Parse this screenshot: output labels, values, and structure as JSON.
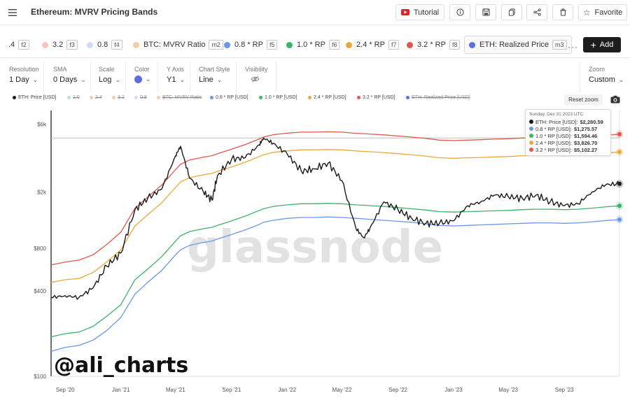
{
  "header": {
    "title": "Ethereum: MVRV Pricing Bands",
    "tutorial_label": "Tutorial",
    "favorite_label": "Favorite"
  },
  "metrics": [
    {
      "label": ".4",
      "key": "f2",
      "color": ""
    },
    {
      "label": "3.2",
      "key": "f3",
      "color": "#f4c8bd"
    },
    {
      "label": "0.8",
      "key": "f4",
      "color": "#cfdcf5"
    },
    {
      "label": "BTC: MVRV Ratio",
      "key": "m2",
      "color": "#f3cfa5"
    },
    {
      "label": "0.8 * RP",
      "key": "f5",
      "color": "#6a97e6"
    },
    {
      "label": "1.0 * RP",
      "key": "f6",
      "color": "#3db36a"
    },
    {
      "label": "2.4 * RP",
      "key": "f7",
      "color": "#e9a93a"
    },
    {
      "label": "3.2 * RP",
      "key": "f8",
      "color": "#e2574c"
    },
    {
      "label": "ETH: Realized Price",
      "key": "m3",
      "color": "#5b6fe0"
    }
  ],
  "more_label": "···",
  "add_label": "Add",
  "controls": [
    {
      "label": "Resolution",
      "value": "1 Day"
    },
    {
      "label": "SMA",
      "value": "0 Days"
    },
    {
      "label": "Scale",
      "value": "Log"
    },
    {
      "label": "Color",
      "value": ""
    },
    {
      "label": "Y Axis",
      "value": "Y1"
    },
    {
      "label": "Chart Style",
      "value": "Line"
    },
    {
      "label": "Visibility",
      "value": ""
    },
    {
      "label": "Zoom",
      "value": "Custom"
    }
  ],
  "color_control_value": "#5b6fe0",
  "legend": [
    {
      "label": "ETH: Price [USD]",
      "color": "#1a1a1a",
      "off": false
    },
    {
      "label": "1.0",
      "color": "#bfe3c9",
      "off": true
    },
    {
      "label": "2.4",
      "color": "#f3cfa5",
      "off": true
    },
    {
      "label": "3.2",
      "color": "#f4c8bd",
      "off": true
    },
    {
      "label": "0.8",
      "color": "#cfdcf5",
      "off": true
    },
    {
      "label": "BTC: MVRV Ratio",
      "color": "#f3cfa5",
      "off": true
    },
    {
      "label": "0.8 * RP [USD]",
      "color": "#6a97e6",
      "off": false
    },
    {
      "label": "1.0 * RP [USD]",
      "color": "#3db36a",
      "off": false
    },
    {
      "label": "2.4 * RP [USD]",
      "color": "#e9a93a",
      "off": false
    },
    {
      "label": "3.2 * RP [USD]",
      "color": "#e2574c",
      "off": false
    },
    {
      "label": "ETH: Realized Price [USD]",
      "color": "#5b6fe0",
      "off": true
    }
  ],
  "reset_zoom_label": "Reset zoom",
  "watermark": "glassnode",
  "handle": "@ali_charts",
  "tooltip": {
    "date": "Sunday, Dec 31 2023 UTC",
    "rows": [
      {
        "label": "ETH: Price [USD]:",
        "value": "$2,280.59",
        "color": "#1a1a1a"
      },
      {
        "label": "0.8 * RP [USD]:",
        "value": "$1,275.57",
        "color": "#6a97e6"
      },
      {
        "label": "1.0 * RP [USD]:",
        "value": "$1,594.46",
        "color": "#3db36a"
      },
      {
        "label": "2.4 * RP [USD]:",
        "value": "$3,826.70",
        "color": "#e9a93a"
      },
      {
        "label": "3.2 * RP [USD]:",
        "value": "$5,102.27",
        "color": "#e2574c"
      }
    ]
  },
  "chart_data": {
    "type": "line",
    "title": "Ethereum: MVRV Pricing Bands",
    "x_ticks": [
      "Sep '20",
      "Jan '21",
      "May '21",
      "Sep '21",
      "Jan '22",
      "May '22",
      "Sep '22",
      "Jan '23",
      "May '23",
      "Sep '23"
    ],
    "x_tick_dates": [
      "2020-09-01",
      "2021-01-01",
      "2021-05-01",
      "2021-09-01",
      "2022-01-01",
      "2022-05-01",
      "2022-09-01",
      "2023-01-01",
      "2023-05-01",
      "2023-09-01"
    ],
    "y_ticks": [
      {
        "label": "$100",
        "value": 100
      },
      {
        "label": "$400",
        "value": 400
      },
      {
        "label": "$800",
        "value": 800
      },
      {
        "label": "$2k",
        "value": 2000
      },
      {
        "label": "$6k",
        "value": 6000
      }
    ],
    "y_scale": "log",
    "ylim": [
      100,
      7500
    ],
    "xlim": [
      "2020-08-01",
      "2023-12-31"
    ],
    "reference_line": 4800,
    "x": [
      "2020-08-01",
      "2020-09-01",
      "2020-10-01",
      "2020-11-01",
      "2020-12-01",
      "2021-01-01",
      "2021-02-01",
      "2021-03-01",
      "2021-04-01",
      "2021-05-01",
      "2021-05-12",
      "2021-06-01",
      "2021-07-01",
      "2021-07-20",
      "2021-08-01",
      "2021-09-01",
      "2021-10-01",
      "2021-11-01",
      "2021-11-10",
      "2021-12-01",
      "2022-01-01",
      "2022-02-01",
      "2022-03-01",
      "2022-04-01",
      "2022-05-01",
      "2022-06-01",
      "2022-06-18",
      "2022-07-01",
      "2022-08-01",
      "2022-09-01",
      "2022-10-01",
      "2022-11-01",
      "2022-12-01",
      "2023-01-01",
      "2023-02-01",
      "2023-03-01",
      "2023-04-01",
      "2023-05-01",
      "2023-06-01",
      "2023-07-01",
      "2023-08-01",
      "2023-09-01",
      "2023-10-01",
      "2023-11-01",
      "2023-12-01",
      "2023-12-31"
    ],
    "series": [
      {
        "name": "ETH: Price [USD]",
        "color": "#1a1a1a",
        "values": [
          360,
          370,
          360,
          420,
          600,
          740,
          1500,
          1800,
          2100,
          3600,
          4200,
          2500,
          2000,
          1750,
          2600,
          3400,
          3500,
          4300,
          4800,
          4400,
          3700,
          2800,
          2900,
          3200,
          2400,
          1100,
          950,
          1100,
          1700,
          1500,
          1300,
          1200,
          1200,
          1250,
          1600,
          1700,
          1900,
          1850,
          1800,
          1900,
          1700,
          1600,
          1650,
          2000,
          2250,
          2280
        ]
      },
      {
        "name": "0.8 * RP [USD]",
        "color": "#6a97e6",
        "values": [
          150,
          160,
          165,
          180,
          210,
          260,
          380,
          460,
          560,
          720,
          780,
          840,
          880,
          900,
          930,
          1000,
          1080,
          1180,
          1220,
          1260,
          1300,
          1320,
          1320,
          1330,
          1320,
          1300,
          1290,
          1280,
          1260,
          1240,
          1220,
          1190,
          1160,
          1150,
          1160,
          1170,
          1180,
          1190,
          1200,
          1210,
          1210,
          1200,
          1210,
          1230,
          1255,
          1275
        ]
      },
      {
        "name": "1.0 * RP [USD]",
        "color": "#3db36a",
        "values": [
          190,
          200,
          205,
          225,
          265,
          320,
          480,
          570,
          700,
          900,
          980,
          1050,
          1100,
          1125,
          1160,
          1250,
          1350,
          1480,
          1520,
          1580,
          1620,
          1650,
          1650,
          1660,
          1650,
          1620,
          1610,
          1600,
          1580,
          1550,
          1520,
          1490,
          1450,
          1440,
          1450,
          1460,
          1470,
          1480,
          1500,
          1510,
          1510,
          1500,
          1510,
          1535,
          1570,
          1594
        ]
      },
      {
        "name": "2.4 * RP [USD]",
        "color": "#e9a93a",
        "values": [
          460,
          480,
          490,
          540,
          640,
          780,
          1150,
          1380,
          1680,
          2150,
          2350,
          2520,
          2640,
          2700,
          2790,
          3000,
          3240,
          3550,
          3650,
          3800,
          3890,
          3960,
          3960,
          3980,
          3960,
          3890,
          3860,
          3840,
          3790,
          3720,
          3650,
          3580,
          3480,
          3450,
          3480,
          3500,
          3530,
          3550,
          3600,
          3620,
          3620,
          3600,
          3620,
          3690,
          3760,
          3827
        ]
      },
      {
        "name": "3.2 * RP [USD]",
        "color": "#e2574c",
        "values": [
          610,
          640,
          660,
          720,
          850,
          1040,
          1530,
          1840,
          2240,
          2870,
          3130,
          3360,
          3520,
          3600,
          3720,
          4000,
          4320,
          4730,
          4870,
          5060,
          5190,
          5280,
          5280,
          5310,
          5280,
          5180,
          5150,
          5120,
          5050,
          4960,
          4870,
          4770,
          4640,
          4600,
          4640,
          4670,
          4710,
          4740,
          4800,
          4830,
          4830,
          4800,
          4830,
          4920,
          5020,
          5102
        ]
      }
    ]
  }
}
